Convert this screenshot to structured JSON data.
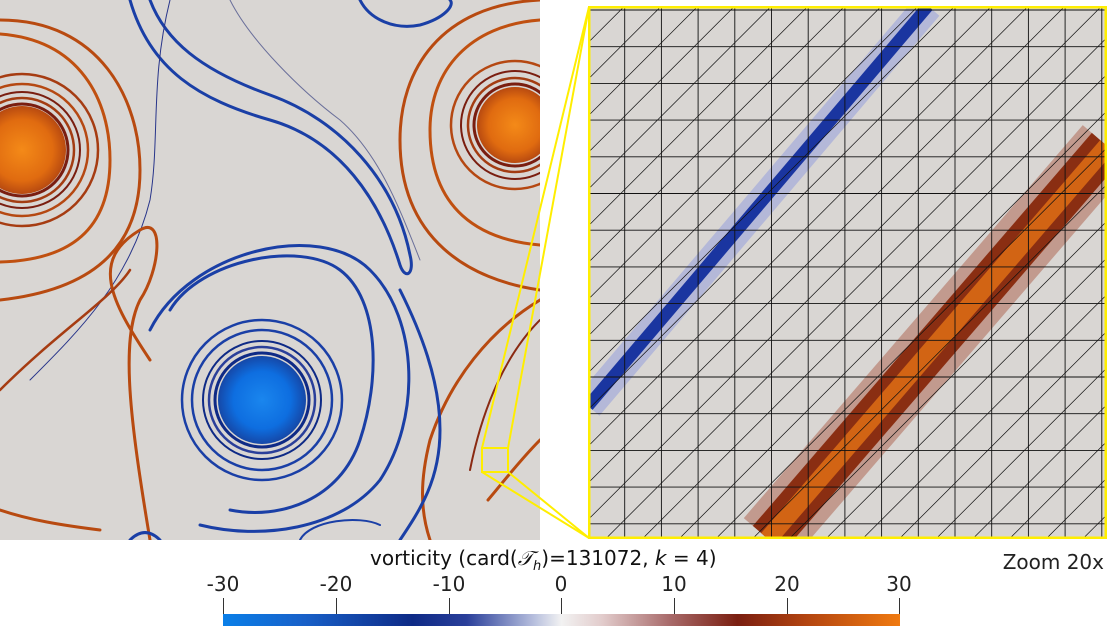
{
  "figure": {
    "colorbar": {
      "title_prefix": "vorticity (card(",
      "title_symbol": "𝒯",
      "title_sub": "h",
      "title_mid": ")=131072, ",
      "title_k": "k",
      "title_suffix": " = 4)",
      "ticks": [
        "-30",
        "-20",
        "-10",
        "0",
        "10",
        "20",
        "30"
      ],
      "range": [
        -30,
        30
      ],
      "colors": {
        "negative_max": "#0a7fe8",
        "negative_mid": "#0e2a86",
        "zero": "#f2f2f2",
        "positive_mid": "#7a1e10",
        "positive_max": "#f07a10"
      }
    },
    "zoom_label": "Zoom 20x",
    "highlight_color": "#ffee00",
    "background_color": "#d9d6d3"
  }
}
